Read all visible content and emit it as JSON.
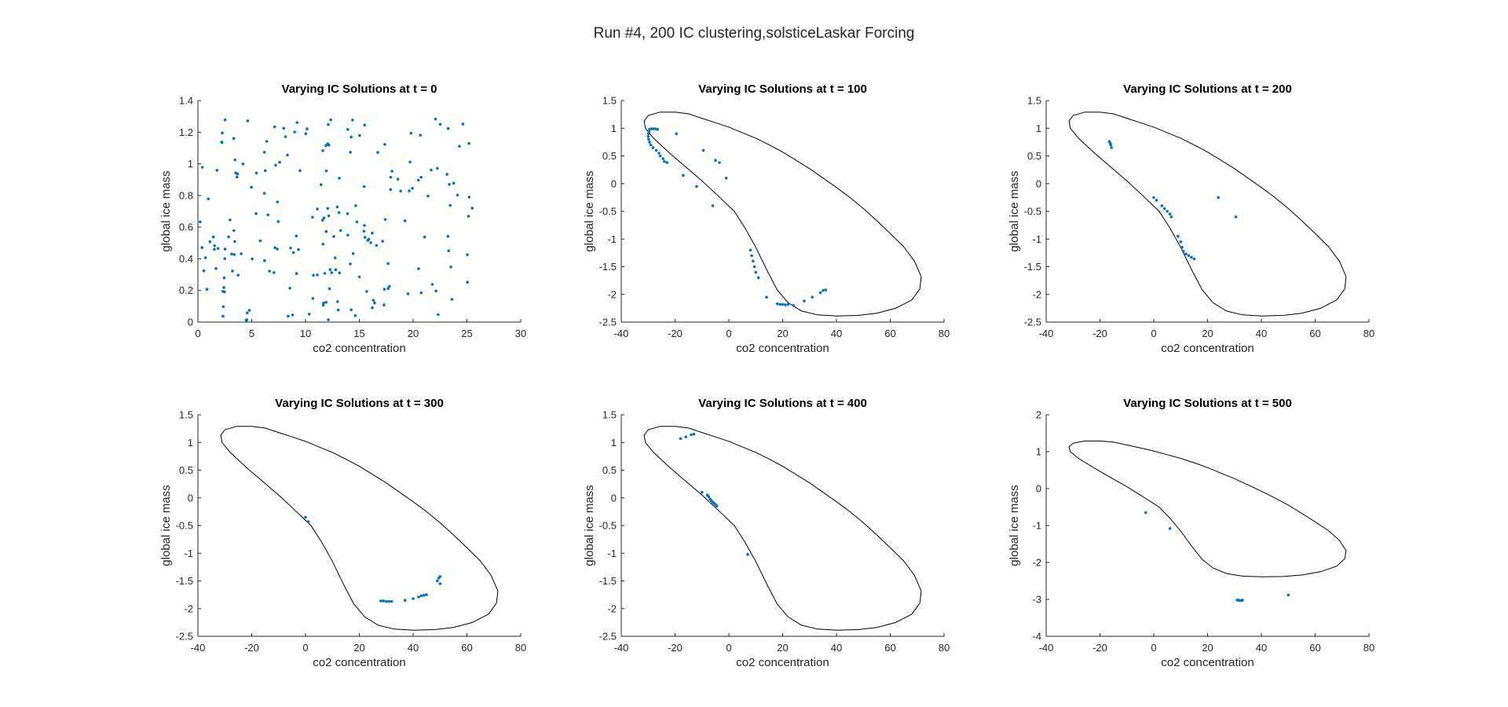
{
  "figure": {
    "title": "Run #4, 200 IC clustering,solsticeLaskar Forcing",
    "marker_color": "#0072BD",
    "curve_color": "#000000"
  },
  "chart_data": [
    {
      "type": "scatter",
      "title": "Varying IC Solutions at t = 0",
      "xlabel": "co2 concentration",
      "ylabel": "global ice mass",
      "xlim": [
        0,
        30
      ],
      "ylim": [
        0,
        1.4
      ],
      "xticks": [
        0,
        5,
        10,
        15,
        20,
        25,
        30
      ],
      "yticks": [
        0,
        0.2,
        0.4,
        0.6,
        0.8,
        1,
        1.2,
        1.4
      ],
      "xtick_labels": [
        "0",
        "5",
        "10",
        "15",
        "20",
        "25",
        "30"
      ],
      "ytick_labels": [
        "0",
        "0.2",
        "0.4",
        "0.6",
        "0.8",
        "1",
        "1.2",
        "1.4"
      ],
      "grid": false,
      "points_generated": {
        "count": 200,
        "x_range": [
          0.2,
          26.2
        ],
        "y_range": [
          0.01,
          1.29
        ],
        "seed": 7
      },
      "points": []
    },
    {
      "type": "scatter",
      "title": "Varying IC Solutions at t = 100",
      "xlabel": "co2 concentration",
      "ylabel": "global ice mass",
      "xlim": [
        -40,
        80
      ],
      "ylim": [
        -2.5,
        1.5
      ],
      "xticks": [
        -40,
        -20,
        0,
        20,
        40,
        60,
        80
      ],
      "yticks": [
        -2.5,
        -2,
        -1.5,
        -1,
        -0.5,
        0,
        0.5,
        1,
        1.5
      ],
      "xtick_labels": [
        "-40",
        "-20",
        "0",
        "20",
        "40",
        "60",
        "80"
      ],
      "ytick_labels": [
        "-2.5",
        "-2",
        "-1.5",
        "-1",
        "-0.5",
        "0",
        "0.5",
        "1",
        "1.5"
      ],
      "grid": false,
      "show_cycle": true,
      "points": [
        [
          -29.5,
          0.98
        ],
        [
          -28.8,
          0.99
        ],
        [
          -28,
          0.99
        ],
        [
          -27.2,
          0.99
        ],
        [
          -26.5,
          0.98
        ],
        [
          -29.7,
          0.93
        ],
        [
          -29.9,
          0.9
        ],
        [
          -30,
          0.85
        ],
        [
          -29.8,
          0.8
        ],
        [
          -29.5,
          0.75
        ],
        [
          -29,
          0.7
        ],
        [
          -28.2,
          0.65
        ],
        [
          -27,
          0.6
        ],
        [
          -26,
          0.55
        ],
        [
          -25.5,
          0.5
        ],
        [
          -24.5,
          0.45
        ],
        [
          -24,
          0.4
        ],
        [
          -23,
          0.38
        ],
        [
          -19.5,
          0.9
        ],
        [
          -17,
          0.15
        ],
        [
          -12,
          -0.05
        ],
        [
          -9.5,
          0.6
        ],
        [
          -5,
          0.42
        ],
        [
          -3.5,
          0.38
        ],
        [
          -6,
          -0.4
        ],
        [
          -1,
          0.1
        ],
        [
          8,
          -1.2
        ],
        [
          8.5,
          -1.3
        ],
        [
          9,
          -1.4
        ],
        [
          9.5,
          -1.5
        ],
        [
          10,
          -1.6
        ],
        [
          11,
          -1.7
        ],
        [
          14,
          -2.05
        ],
        [
          18,
          -2.17
        ],
        [
          19,
          -2.18
        ],
        [
          20,
          -2.18
        ],
        [
          21,
          -2.19
        ],
        [
          22,
          -2.18
        ],
        [
          24,
          -2.2
        ],
        [
          28,
          -2.12
        ],
        [
          31,
          -2.05
        ],
        [
          34,
          -1.97
        ],
        [
          35,
          -1.93
        ],
        [
          36,
          -1.92
        ]
      ]
    },
    {
      "type": "scatter",
      "title": "Varying IC Solutions at t = 200",
      "xlabel": "co2 concentration",
      "ylabel": "global ice mass",
      "xlim": [
        -40,
        80
      ],
      "ylim": [
        -2.5,
        1.5
      ],
      "xticks": [
        -40,
        -20,
        0,
        20,
        40,
        60,
        80
      ],
      "yticks": [
        -2.5,
        -2,
        -1.5,
        -1,
        -0.5,
        0,
        0.5,
        1,
        1.5
      ],
      "xtick_labels": [
        "-40",
        "-20",
        "0",
        "20",
        "40",
        "60",
        "80"
      ],
      "ytick_labels": [
        "-2.5",
        "-2",
        "-1.5",
        "-1",
        "-0.5",
        "0",
        "0.5",
        "1",
        "1.5"
      ],
      "grid": false,
      "show_cycle": true,
      "points": [
        [
          -16.5,
          0.76
        ],
        [
          -16.2,
          0.73
        ],
        [
          -16,
          0.7
        ],
        [
          -15.7,
          0.65
        ],
        [
          0,
          -0.25
        ],
        [
          1,
          -0.3
        ],
        [
          3,
          -0.4
        ],
        [
          4,
          -0.45
        ],
        [
          5,
          -0.5
        ],
        [
          6,
          -0.55
        ],
        [
          6.5,
          -0.6
        ],
        [
          9,
          -0.95
        ],
        [
          10,
          -1.05
        ],
        [
          10.5,
          -1.15
        ],
        [
          11,
          -1.22
        ],
        [
          12,
          -1.27
        ],
        [
          13,
          -1.3
        ],
        [
          14,
          -1.33
        ],
        [
          15,
          -1.36
        ],
        [
          24,
          -0.25
        ],
        [
          30.5,
          -0.6
        ]
      ]
    },
    {
      "type": "scatter",
      "title": "Varying IC Solutions at t = 300",
      "xlabel": "co2 concentration",
      "ylabel": "global ice mass",
      "xlim": [
        -40,
        80
      ],
      "ylim": [
        -2.5,
        1.5
      ],
      "xticks": [
        -40,
        -20,
        0,
        20,
        40,
        60,
        80
      ],
      "yticks": [
        -2.5,
        -2,
        -1.5,
        -1,
        -0.5,
        0,
        0.5,
        1,
        1.5
      ],
      "xtick_labels": [
        "-40",
        "-20",
        "0",
        "20",
        "40",
        "60",
        "80"
      ],
      "ytick_labels": [
        "-2.5",
        "-2",
        "-1.5",
        "-1",
        "-0.5",
        "0",
        "0.5",
        "1",
        "1.5"
      ],
      "grid": false,
      "show_cycle": true,
      "points": [
        [
          0,
          -0.35
        ],
        [
          1,
          -0.43
        ],
        [
          28,
          -1.86
        ],
        [
          29,
          -1.86
        ],
        [
          30,
          -1.87
        ],
        [
          31,
          -1.87
        ],
        [
          32,
          -1.87
        ],
        [
          37,
          -1.85
        ],
        [
          40,
          -1.82
        ],
        [
          42,
          -1.79
        ],
        [
          43,
          -1.77
        ],
        [
          44,
          -1.76
        ],
        [
          45,
          -1.75
        ],
        [
          49,
          -1.5
        ],
        [
          49.5,
          -1.45
        ],
        [
          50,
          -1.42
        ],
        [
          50,
          -1.55
        ]
      ]
    },
    {
      "type": "scatter",
      "title": "Varying IC Solutions at t = 400",
      "xlabel": "co2 concentration",
      "ylabel": "global ice mass",
      "xlim": [
        -40,
        80
      ],
      "ylim": [
        -2.5,
        1.5
      ],
      "xticks": [
        -40,
        -20,
        0,
        20,
        40,
        60,
        80
      ],
      "yticks": [
        -2.5,
        -2,
        -1.5,
        -1,
        -0.5,
        0,
        0.5,
        1,
        1.5
      ],
      "xtick_labels": [
        "-40",
        "-20",
        "0",
        "20",
        "40",
        "60",
        "80"
      ],
      "ytick_labels": [
        "-2.5",
        "-2",
        "-1.5",
        "-1",
        "-0.5",
        "0",
        "0.5",
        "1",
        "1.5"
      ],
      "grid": false,
      "show_cycle": true,
      "points": [
        [
          -18,
          1.07
        ],
        [
          -16,
          1.1
        ],
        [
          -14,
          1.14
        ],
        [
          -13,
          1.15
        ],
        [
          -10,
          0.1
        ],
        [
          -8,
          0.05
        ],
        [
          -7.5,
          0.02
        ],
        [
          -7,
          -0.02
        ],
        [
          -6.5,
          -0.05
        ],
        [
          -6,
          -0.08
        ],
        [
          -5.5,
          -0.1
        ],
        [
          -5,
          -0.12
        ],
        [
          -4.5,
          -0.15
        ],
        [
          7,
          -1.02
        ]
      ]
    },
    {
      "type": "scatter",
      "title": "Varying IC Solutions at t = 500",
      "xlabel": "co2 concentration",
      "ylabel": "global ice mass",
      "xlim": [
        -40,
        80
      ],
      "ylim": [
        -4,
        2
      ],
      "xticks": [
        -40,
        -20,
        0,
        20,
        40,
        60,
        80
      ],
      "yticks": [
        -4,
        -3,
        -2,
        -1,
        0,
        1,
        2
      ],
      "xtick_labels": [
        "-40",
        "-20",
        "0",
        "20",
        "40",
        "60",
        "80"
      ],
      "ytick_labels": [
        "-4",
        "-3",
        "-2",
        "-1",
        "0",
        "1",
        "2"
      ],
      "grid": false,
      "show_cycle": true,
      "points": [
        [
          -3,
          -0.65
        ],
        [
          6,
          -1.08
        ],
        [
          31,
          -3.02
        ],
        [
          31.5,
          -3.02
        ],
        [
          32,
          -3.03
        ],
        [
          32.5,
          -3.03
        ],
        [
          33,
          -3.02
        ],
        [
          50,
          -2.88
        ]
      ]
    }
  ]
}
